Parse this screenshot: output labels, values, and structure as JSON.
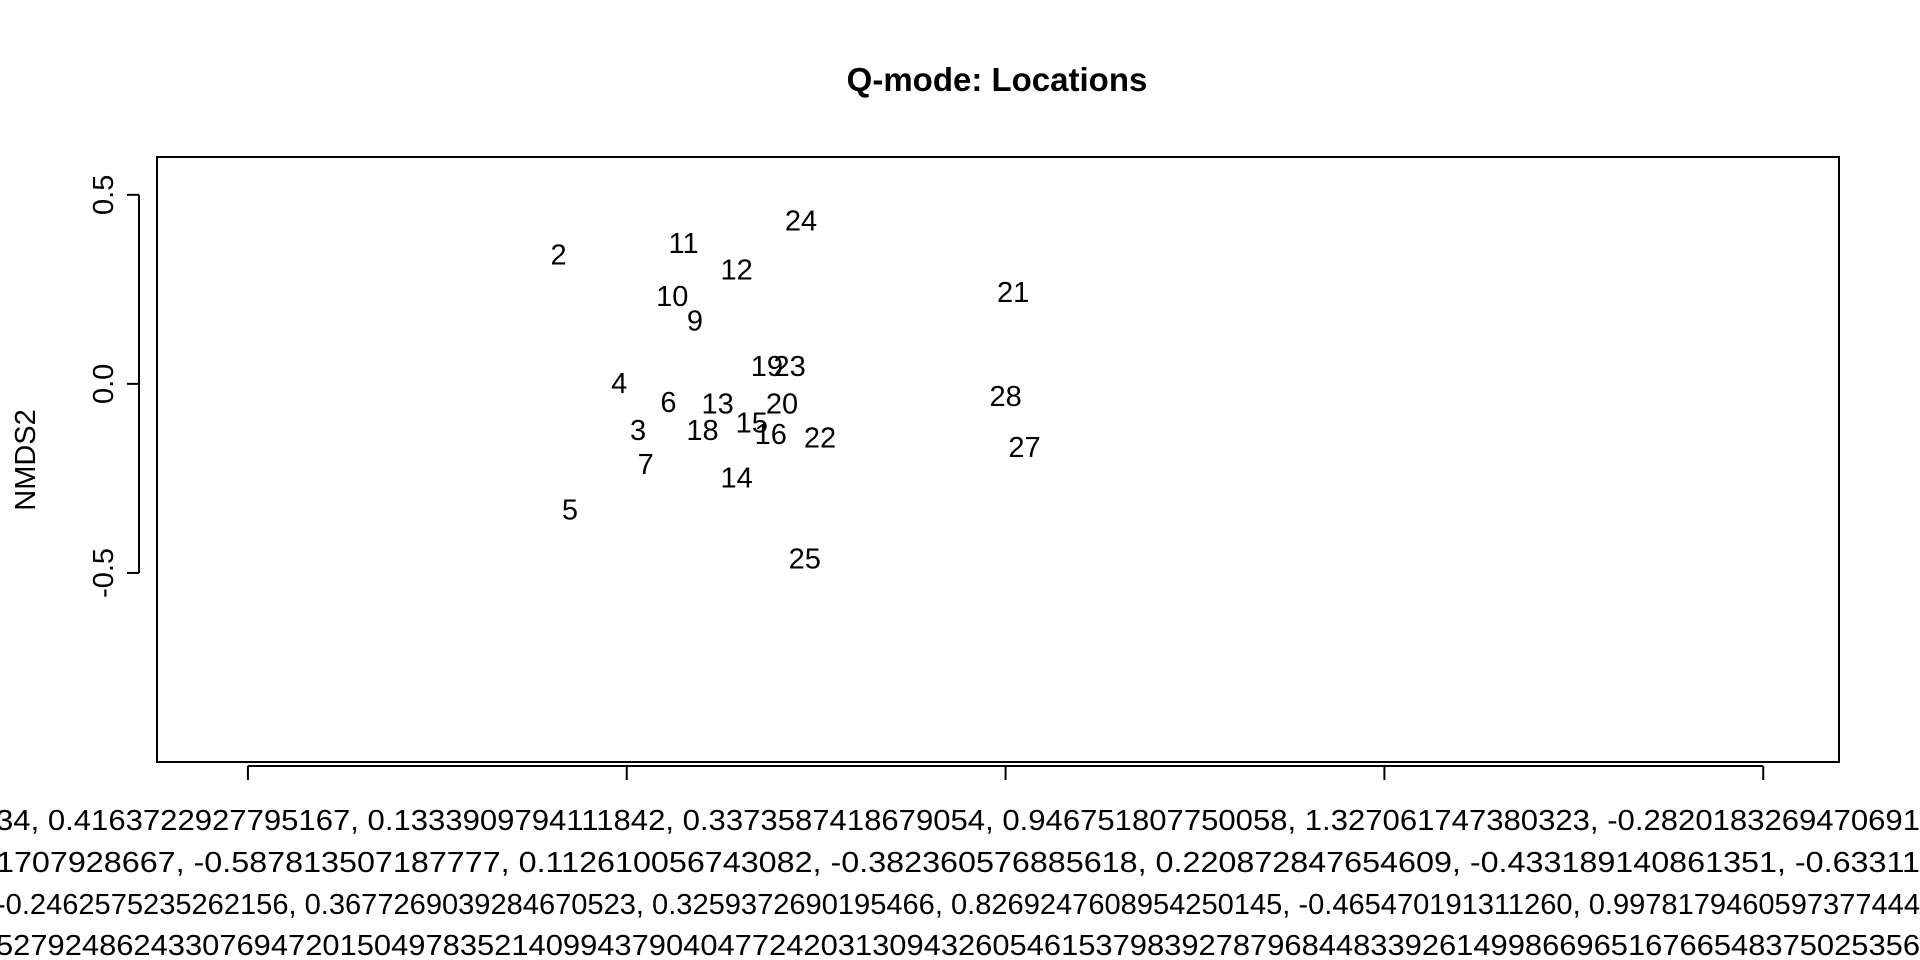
{
  "chart_data": {
    "type": "scatter",
    "title": "Q-mode: Locations",
    "xlabel": "",
    "ylabel": "NMDS2",
    "xlim": [
      -0.62,
      1.6
    ],
    "ylim": [
      -1.0,
      0.6
    ],
    "x_ticks": [
      -0.5,
      0.0,
      0.5,
      1.0,
      1.5
    ],
    "y_ticks": [
      {
        "value": 0.5,
        "label": "0.5"
      },
      {
        "value": 0.0,
        "label": "0.0"
      },
      {
        "value": -0.5,
        "label": "-0.5"
      }
    ],
    "x_tick_label_lines": [
      "34, 0.4163722927795167, 0.1333909794111842, 0.3373587418679054, 0.946751807750058, 1.327061747380323, -0.2820183269470691",
      "1707928667, -0.587813507187777, 0.112610056743082, -0.382360576885618, 0.220872847654609, -0.433189140861351, -0.63311",
      "-0.2462575235262156, 0.3677269039284670523, 0.3259372690195466, 0.8269247608954250145, -0.465470191311260, 0.9978179460597377444",
      "5279248624330769472015049783521409943790404772420313094326054615379839278796844833926149986696516766548375025356"
    ],
    "points": [
      {
        "label": "2",
        "x": -0.09,
        "y": 0.34
      },
      {
        "label": "11",
        "x": 0.075,
        "y": 0.37
      },
      {
        "label": "24",
        "x": 0.23,
        "y": 0.43
      },
      {
        "label": "12",
        "x": 0.145,
        "y": 0.3
      },
      {
        "label": "21",
        "x": 0.51,
        "y": 0.24
      },
      {
        "label": "10",
        "x": 0.06,
        "y": 0.23
      },
      {
        "label": "9",
        "x": 0.09,
        "y": 0.165
      },
      {
        "label": "19",
        "x": 0.185,
        "y": 0.045
      },
      {
        "label": "23",
        "x": 0.215,
        "y": 0.045
      },
      {
        "label": "4",
        "x": -0.01,
        "y": 0.0
      },
      {
        "label": "6",
        "x": 0.055,
        "y": -0.05
      },
      {
        "label": "13",
        "x": 0.12,
        "y": -0.055
      },
      {
        "label": "20",
        "x": 0.205,
        "y": -0.055
      },
      {
        "label": "28",
        "x": 0.5,
        "y": -0.035
      },
      {
        "label": "3",
        "x": 0.015,
        "y": -0.125
      },
      {
        "label": "18",
        "x": 0.1,
        "y": -0.125
      },
      {
        "label": "15",
        "x": 0.165,
        "y": -0.105
      },
      {
        "label": "16",
        "x": 0.19,
        "y": -0.135
      },
      {
        "label": "22",
        "x": 0.255,
        "y": -0.145
      },
      {
        "label": "27",
        "x": 0.525,
        "y": -0.17
      },
      {
        "label": "7",
        "x": 0.025,
        "y": -0.215
      },
      {
        "label": "14",
        "x": 0.145,
        "y": -0.25
      },
      {
        "label": "5",
        "x": -0.075,
        "y": -0.335
      },
      {
        "label": "25",
        "x": 0.235,
        "y": -0.465
      }
    ]
  }
}
